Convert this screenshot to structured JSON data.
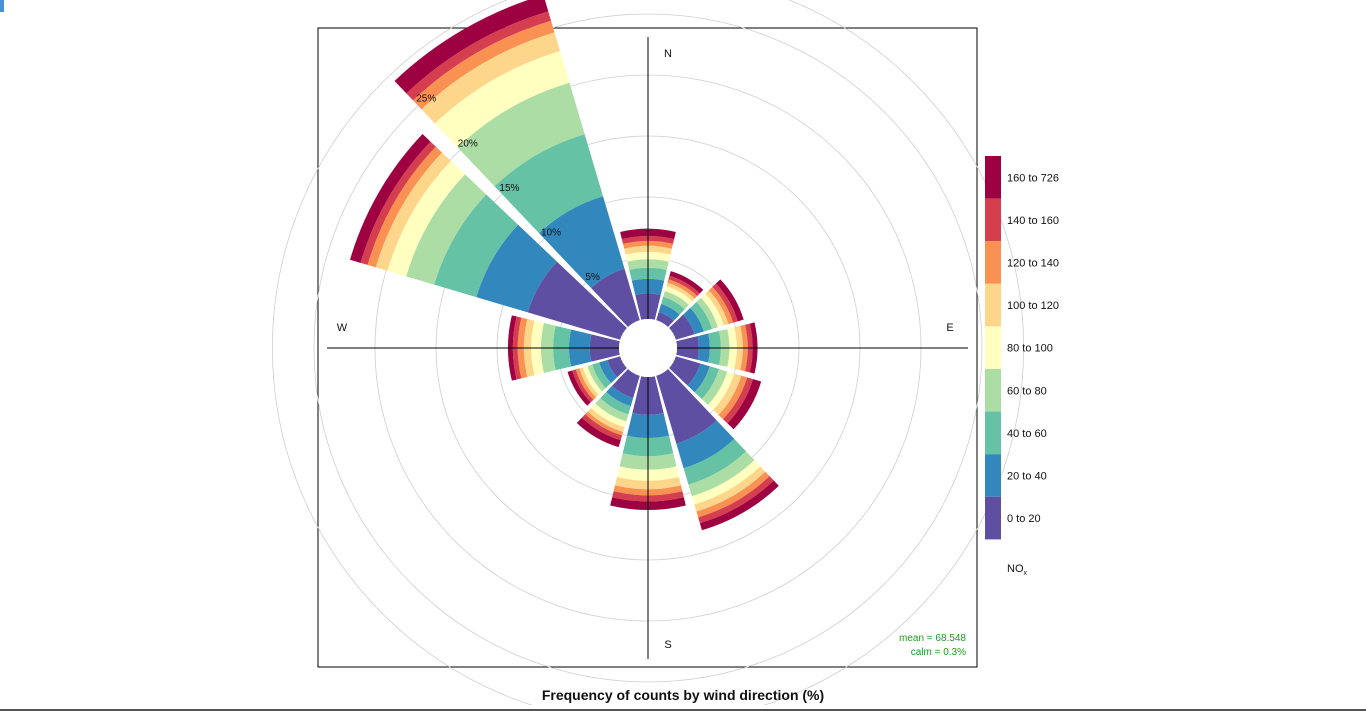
{
  "chart_data": {
    "type": "windrose",
    "xlabel": "Frequency of counts by wind direction (%)",
    "directions": [
      0,
      30,
      60,
      90,
      120,
      150,
      180,
      210,
      240,
      270,
      300,
      330
    ],
    "compass_labels": {
      "N": "N",
      "E": "E",
      "S": "S",
      "W": "W"
    },
    "radial_ticks": [
      5,
      10,
      15,
      20,
      25
    ],
    "radial_tick_labels": [
      "5%",
      "10%",
      "15%",
      "20%",
      "25%"
    ],
    "radial_max": 28,
    "legend_title": "NO",
    "legend_title_sub": "x",
    "legend_position": "right",
    "bins": [
      {
        "label": "0 to 20",
        "color": "#5E4FA2"
      },
      {
        "label": "20 to 40",
        "color": "#3288BD"
      },
      {
        "label": "40 to 60",
        "color": "#66C2A5"
      },
      {
        "label": "60 to 80",
        "color": "#ABDDA4"
      },
      {
        "label": "80 to 100",
        "color": "#FFFFBF"
      },
      {
        "label": "100 to 120",
        "color": "#FDD68B"
      },
      {
        "label": "120 to 140",
        "color": "#F99153"
      },
      {
        "label": "140 to 160",
        "color": "#D53E4F"
      },
      {
        "label": "160 to 726",
        "color": "#9E0142"
      }
    ],
    "series": [
      {
        "direction": 0,
        "cumulative": [
          2.1,
          3.3,
          4.2,
          4.9,
          5.5,
          6.0,
          6.4,
          6.8,
          7.4
        ]
      },
      {
        "direction": 30,
        "cumulative": [
          0.7,
          1.4,
          2.0,
          2.5,
          2.9,
          3.2,
          3.5,
          3.8,
          4.2
        ]
      },
      {
        "direction": 60,
        "cumulative": [
          1.6,
          2.4,
          3.1,
          3.6,
          4.1,
          4.5,
          4.9,
          5.3,
          5.8
        ]
      },
      {
        "direction": 90,
        "cumulative": [
          1.8,
          2.7,
          3.6,
          4.3,
          4.9,
          5.4,
          5.8,
          6.2,
          6.6
        ]
      },
      {
        "direction": 120,
        "cumulative": [
          2.1,
          2.9,
          3.7,
          4.4,
          5.0,
          5.6,
          6.1,
          6.6,
          7.3
        ]
      },
      {
        "direction": 150,
        "cumulative": [
          5.8,
          7.9,
          9.3,
          10.3,
          11.0,
          11.6,
          12.1,
          12.6,
          13.2
        ]
      },
      {
        "direction": 180,
        "cumulative": [
          3.1,
          5.0,
          6.5,
          7.6,
          8.5,
          9.2,
          9.7,
          10.2,
          10.9
        ]
      },
      {
        "direction": 210,
        "cumulative": [
          1.9,
          2.6,
          3.3,
          3.9,
          4.4,
          4.8,
          5.1,
          5.5,
          6.1
        ]
      },
      {
        "direction": 240,
        "cumulative": [
          1.1,
          1.8,
          2.4,
          2.8,
          3.2,
          3.5,
          3.8,
          4.1,
          4.5
        ]
      },
      {
        "direction": 270,
        "cumulative": [
          2.4,
          4.1,
          5.4,
          6.4,
          7.2,
          7.8,
          8.3,
          8.7,
          9.1
        ]
      },
      {
        "direction": 300,
        "cumulative": [
          7.9,
          12.3,
          15.9,
          18.3,
          19.9,
          20.9,
          21.6,
          22.2,
          23.1
        ]
      },
      {
        "direction": 330,
        "cumulative": [
          4.4,
          10.6,
          15.9,
          20.3,
          23.0,
          24.6,
          25.6,
          26.4,
          27.8
        ]
      }
    ],
    "stats": {
      "mean": "mean = 68.548",
      "calm": "calm = 0.3%"
    }
  }
}
